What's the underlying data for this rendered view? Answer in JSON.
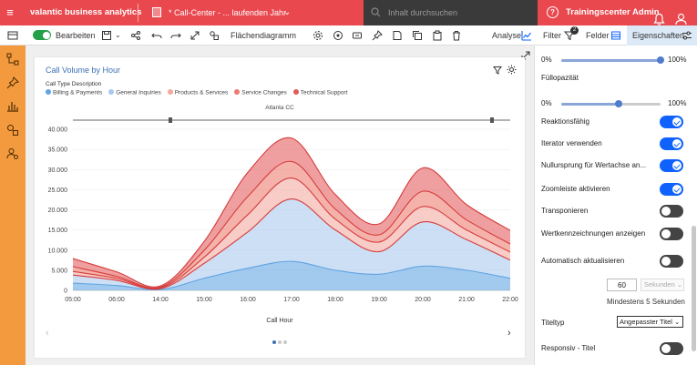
{
  "topbar": {
    "brand": "valantic business analytics",
    "document_title": "* Call-Center - ... laufenden Jahr",
    "search_placeholder": "Inhalt durchsuchen",
    "user": "Trainingscenter Admin",
    "colors": {
      "bar": "#e8484e",
      "search_bg": "#3a3a3a"
    }
  },
  "toolbar": {
    "edit_label": "Bearbeiten",
    "chart_type": "Flächendiagramm",
    "analyse": "Analyse",
    "filter": "Filter",
    "filter_badge": "2",
    "fields": "Felder",
    "properties": "Eigenschaften"
  },
  "sidebar": {
    "color": "#f39a3e",
    "icons": [
      "hierarchy-icon",
      "pin-icon",
      "bar-chart-icon",
      "shapes-icon",
      "user-settings-icon"
    ]
  },
  "chart_data": {
    "type": "area",
    "stacked": true,
    "title": "Call Volume by Hour",
    "legend_title": "Call Type Description",
    "subtitle": "Atlanta CC",
    "xlabel": "Call Hour",
    "ylabel": "",
    "ylim": [
      0,
      40000
    ],
    "yticks": [
      "0",
      "5.000",
      "10.000",
      "15.000",
      "20.000",
      "25.000",
      "30.000",
      "35.000",
      "40.000"
    ],
    "x": [
      "05:00",
      "06:00",
      "14:00",
      "15:00",
      "16:00",
      "17:00",
      "18:00",
      "19:00",
      "20:00",
      "21:00",
      "22:00"
    ],
    "series": [
      {
        "name": "Billing & Payments",
        "color": "#5fa3e2",
        "values": [
          1800,
          1200,
          200,
          3000,
          5500,
          7200,
          5000,
          4000,
          6000,
          5000,
          3000
        ]
      },
      {
        "name": "General Inquiries",
        "color": "#a8c8ee",
        "values": [
          2000,
          1300,
          200,
          3700,
          9000,
          15500,
          10000,
          5600,
          11000,
          7600,
          4500
        ]
      },
      {
        "name": "Products & Services",
        "color": "#f3a79e",
        "values": [
          900,
          500,
          200,
          1500,
          4300,
          5200,
          2700,
          2400,
          3800,
          2400,
          2000
        ]
      },
      {
        "name": "Service Changes",
        "color": "#ec7b6e",
        "values": [
          1200,
          500,
          200,
          1700,
          4500,
          4100,
          2500,
          1800,
          3800,
          2500,
          2000
        ]
      },
      {
        "name": "Technical Support",
        "color": "#e35a5a",
        "values": [
          2000,
          1100,
          300,
          2200,
          6000,
          5800,
          3600,
          2700,
          5800,
          3800,
          3400
        ]
      }
    ],
    "grid": true,
    "legend_position": "top-left",
    "line_color": "#d63c3c"
  },
  "carousel": {
    "pages": 3,
    "active": 0
  },
  "properties": {
    "opacity_label": "Füllopazität",
    "slider1": {
      "min": "0%",
      "max": "100%",
      "value": 1.0
    },
    "slider2": {
      "min": "0%",
      "max": "100%",
      "value": 0.58
    },
    "toggles": [
      {
        "label": "Reaktionsfähig",
        "on": true
      },
      {
        "label": "Iterator verwenden",
        "on": true
      },
      {
        "label": "Nullursprung für Wertachse an...",
        "on": true
      },
      {
        "label": "Zoomleiste aktivieren",
        "on": true
      },
      {
        "label": "Transponieren",
        "on": false
      },
      {
        "label": "Wertkennzeichnungen anzeigen",
        "on": false
      },
      {
        "label": "Automatisch aktualisieren",
        "on": false
      }
    ],
    "refresh_value": "60",
    "refresh_unit": "Sekunden",
    "refresh_hint": "Mindestens 5 Sekunden",
    "title_type_label": "Titeltyp",
    "title_type_value": "Angepasster Titel",
    "responsive_title_label": "Responsiv - Titel",
    "responsive_title_on": false
  }
}
